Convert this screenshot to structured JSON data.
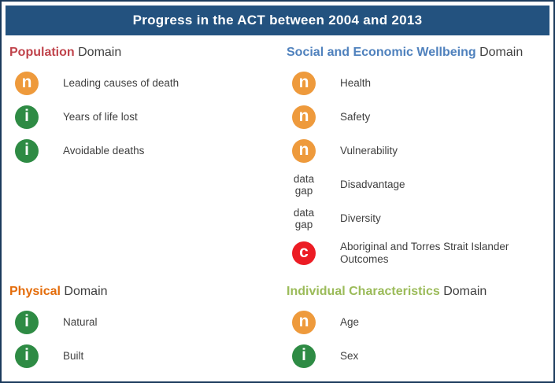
{
  "title": "Progress in the ACT between 2004 and 2013",
  "colors": {
    "title_bar": "#23527F",
    "frame_border": "#1B3A5C",
    "body_text": "#3F3F3F",
    "population_accent": "#C0444C",
    "social_accent": "#4F81BD",
    "physical_accent": "#E46C0A",
    "individual_accent": "#9BBB59",
    "icon_improvement": "#2E8B44",
    "icon_no_change": "#EE9A3C",
    "icon_concern": "#EC1C24"
  },
  "icons": {
    "improvement": {
      "name": "improvement-icon",
      "glyph": "i"
    },
    "no_change": {
      "name": "no-change-icon",
      "glyph": "n"
    },
    "concern": {
      "name": "concern-icon",
      "glyph": "c"
    },
    "data_gap": {
      "line1": "data",
      "line2": "gap"
    }
  },
  "domains": [
    {
      "name": "Population",
      "suffix": "Domain",
      "items": [
        {
          "icon": "no_change",
          "label": "Leading causes of death"
        },
        {
          "icon": "improvement",
          "label": "Years of life lost"
        },
        {
          "icon": "improvement",
          "label": "Avoidable deaths"
        }
      ]
    },
    {
      "name": "Social and Economic Wellbeing",
      "suffix": "Domain",
      "items": [
        {
          "icon": "no_change",
          "label": "Health"
        },
        {
          "icon": "no_change",
          "label": "Safety"
        },
        {
          "icon": "no_change",
          "label": "Vulnerability"
        },
        {
          "icon": "data_gap",
          "label": "Disadvantage"
        },
        {
          "icon": "data_gap",
          "label": "Diversity"
        },
        {
          "icon": "concern",
          "label": "Aboriginal and Torres Strait Islander Outcomes"
        }
      ]
    },
    {
      "name": "Physical",
      "suffix": "Domain",
      "items": [
        {
          "icon": "improvement",
          "label": "Natural"
        },
        {
          "icon": "improvement",
          "label": "Built"
        }
      ]
    },
    {
      "name": "Individual Characteristics",
      "suffix": "Domain",
      "items": [
        {
          "icon": "no_change",
          "label": "Age"
        },
        {
          "icon": "improvement",
          "label": "Sex"
        }
      ]
    }
  ]
}
